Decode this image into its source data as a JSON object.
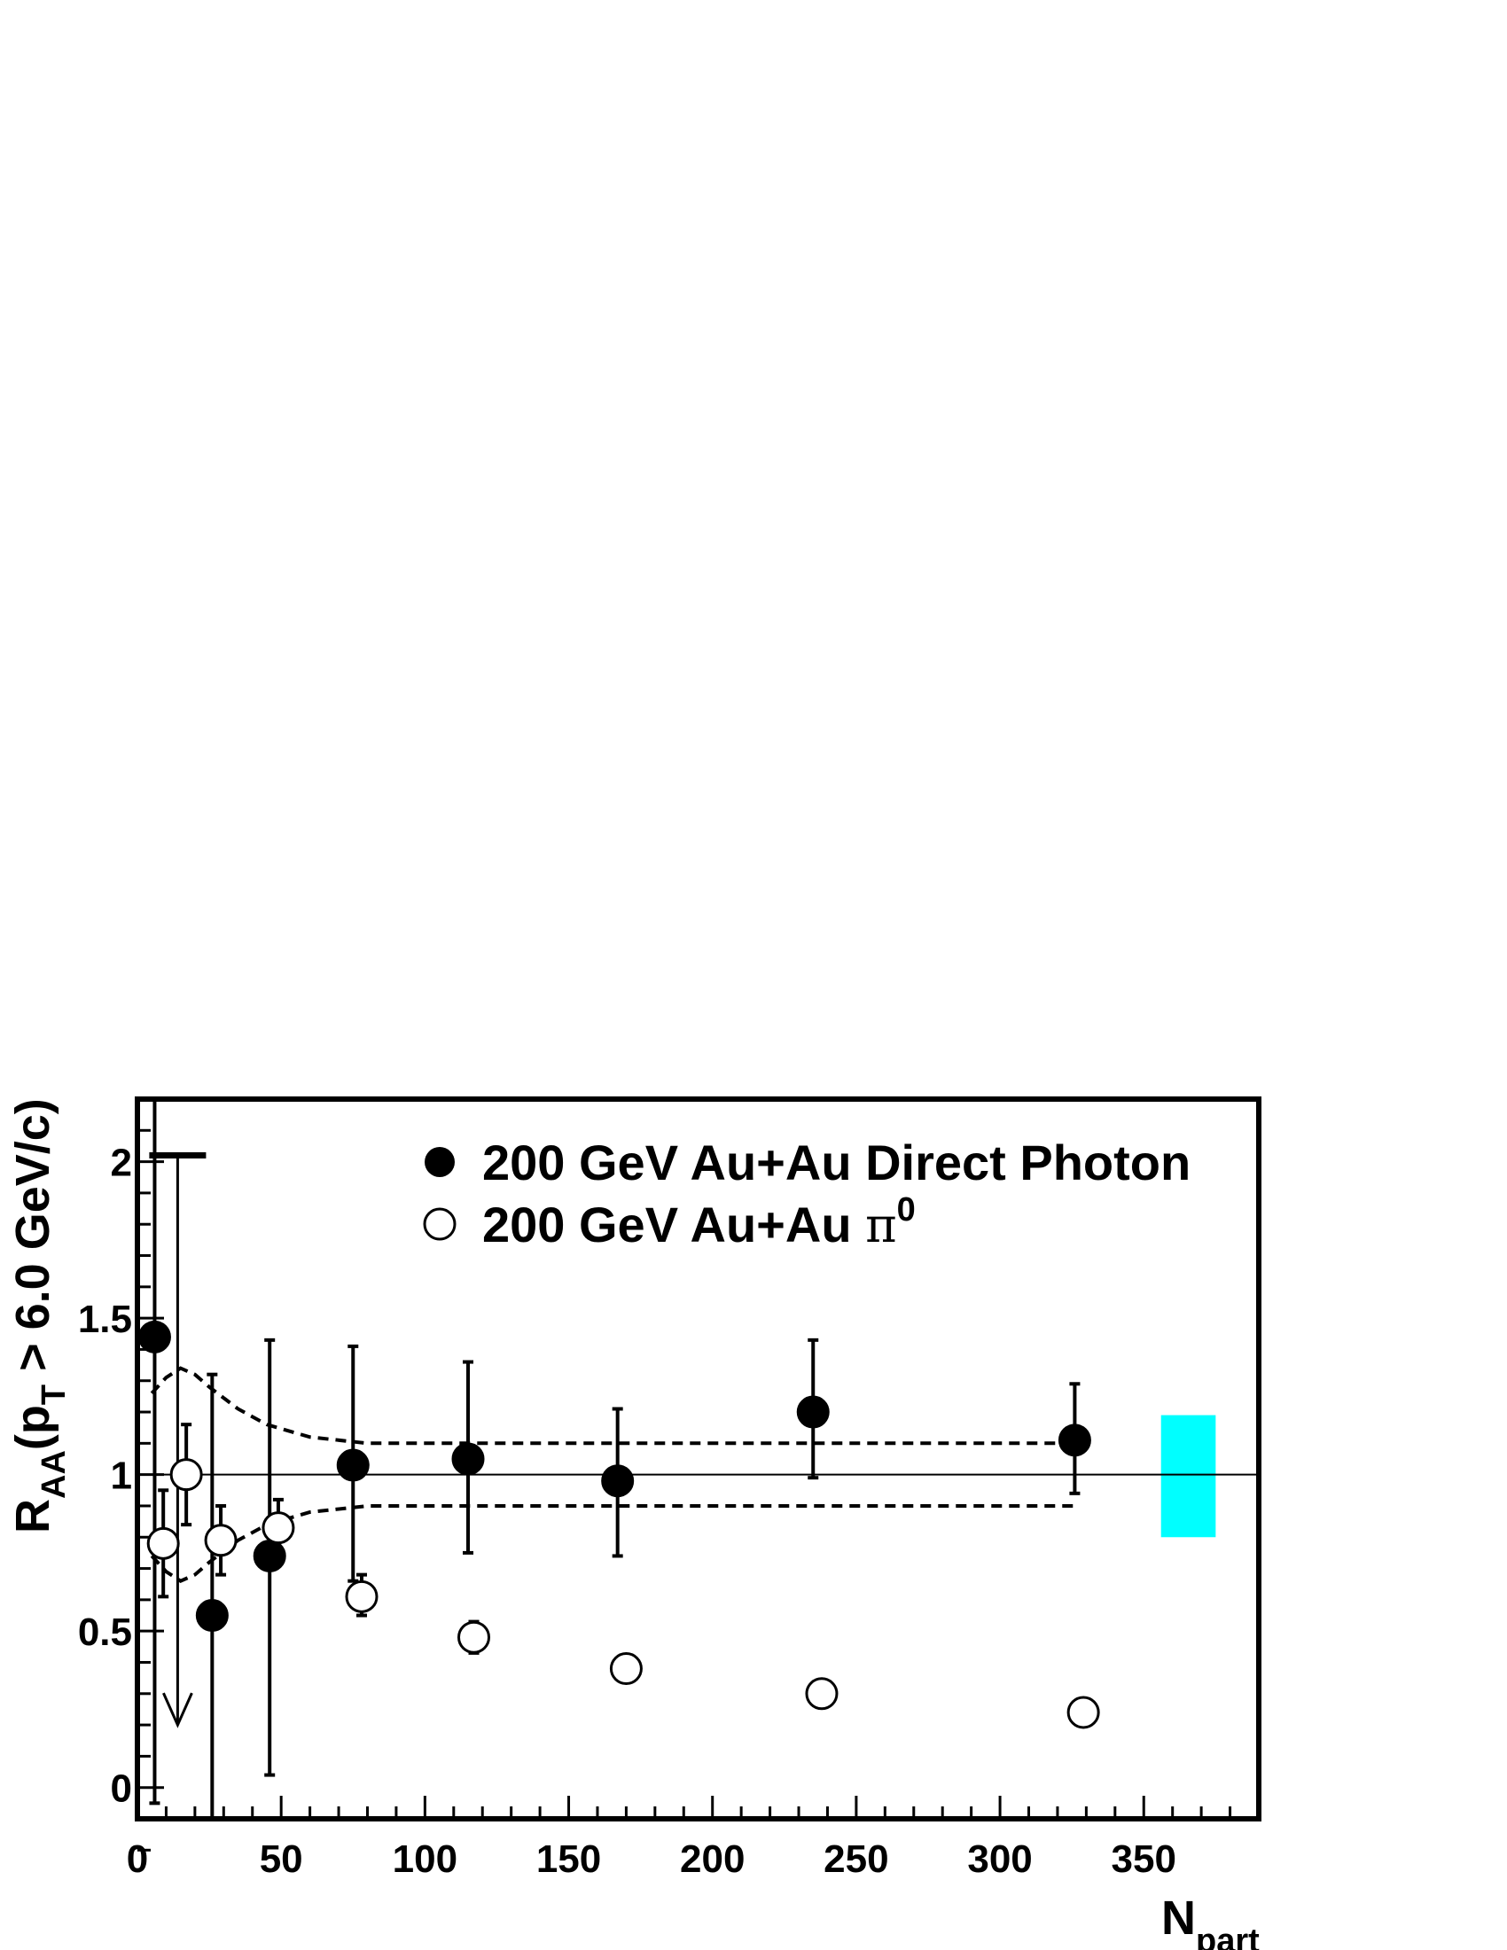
{
  "chart_data": {
    "type": "scatter",
    "title": "",
    "xlabel": "N",
    "xlabel_sub": "part",
    "ylabel": "R",
    "ylabel_sub": "AA",
    "ylabel_paren_open": "(p",
    "ylabel_paren_sub": "T",
    "ylabel_paren_rest": " > 6.0 GeV/c)",
    "xlim": [
      0,
      390
    ],
    "ylim": [
      -0.1,
      2.2
    ],
    "x_ticks": [
      0,
      50,
      100,
      150,
      200,
      250,
      300,
      350
    ],
    "x_tick_labels": [
      "0",
      "50",
      "100",
      "150",
      "200",
      "250",
      "300",
      "350"
    ],
    "y_ticks": [
      0,
      0.5,
      1,
      1.5,
      2
    ],
    "y_tick_labels": [
      "0",
      "0.5",
      "1",
      "1.5",
      "2"
    ],
    "grid": false,
    "legend_placement": "top-right",
    "reference_line_y": 1,
    "series": [
      {
        "name": "200 GeV Au+Au Direct Photon",
        "marker": "filled-circle",
        "points": [
          {
            "x": 6,
            "y": 1.44,
            "ylo": -0.05,
            "yhi": 2.2
          },
          {
            "x": 26,
            "y": 0.55,
            "ylo": -0.1,
            "yhi": 1.32
          },
          {
            "x": 46,
            "y": 0.74,
            "ylo": 0.04,
            "yhi": 1.43
          },
          {
            "x": 75,
            "y": 1.03,
            "ylo": 0.66,
            "yhi": 1.41
          },
          {
            "x": 115,
            "y": 1.05,
            "ylo": 0.75,
            "yhi": 1.36
          },
          {
            "x": 167,
            "y": 0.98,
            "ylo": 0.74,
            "yhi": 1.21
          },
          {
            "x": 235,
            "y": 1.2,
            "ylo": 0.99,
            "yhi": 1.43
          },
          {
            "x": 326,
            "y": 1.11,
            "ylo": 0.94,
            "yhi": 1.29
          }
        ],
        "upper_limit": {
          "x": 14,
          "y": 2.02,
          "arrow_to": 0.2
        }
      },
      {
        "name": "200 GeV Au+Au ",
        "name_symbol": "π",
        "name_sup": "0",
        "marker": "open-circle",
        "points": [
          {
            "x": 9,
            "y": 0.78,
            "ylo": 0.61,
            "yhi": 0.95
          },
          {
            "x": 17,
            "y": 1.0,
            "ylo": 0.84,
            "yhi": 1.16
          },
          {
            "x": 29,
            "y": 0.79,
            "ylo": 0.68,
            "yhi": 0.9
          },
          {
            "x": 49,
            "y": 0.83,
            "ylo": 0.74,
            "yhi": 0.92
          },
          {
            "x": 78,
            "y": 0.61,
            "ylo": 0.55,
            "yhi": 0.68
          },
          {
            "x": 117,
            "y": 0.48,
            "ylo": 0.43,
            "yhi": 0.53
          },
          {
            "x": 170,
            "y": 0.38,
            "ylo": 0.38,
            "yhi": 0.38
          },
          {
            "x": 238,
            "y": 0.3,
            "ylo": 0.3,
            "yhi": 0.3
          },
          {
            "x": 329,
            "y": 0.24,
            "ylo": 0.24,
            "yhi": 0.24
          }
        ]
      }
    ],
    "uncertainty_band": {
      "style": "dashed",
      "upper": [
        [
          5,
          1.26
        ],
        [
          10,
          1.31
        ],
        [
          15,
          1.34
        ],
        [
          20,
          1.32
        ],
        [
          25,
          1.28
        ],
        [
          35,
          1.21
        ],
        [
          45,
          1.16
        ],
        [
          60,
          1.12
        ],
        [
          80,
          1.1
        ],
        [
          120,
          1.1
        ],
        [
          170,
          1.1
        ],
        [
          240,
          1.1
        ],
        [
          326,
          1.1
        ]
      ],
      "lower": [
        [
          5,
          0.74
        ],
        [
          10,
          0.69
        ],
        [
          15,
          0.66
        ],
        [
          20,
          0.68
        ],
        [
          25,
          0.72
        ],
        [
          35,
          0.79
        ],
        [
          45,
          0.84
        ],
        [
          60,
          0.88
        ],
        [
          80,
          0.9
        ],
        [
          120,
          0.9
        ],
        [
          170,
          0.9
        ],
        [
          240,
          0.9
        ],
        [
          326,
          0.9
        ]
      ]
    },
    "normalization_box": {
      "x0": 356,
      "x1": 375,
      "y0": 0.8,
      "y1": 1.19,
      "color": "#00ffff"
    }
  }
}
